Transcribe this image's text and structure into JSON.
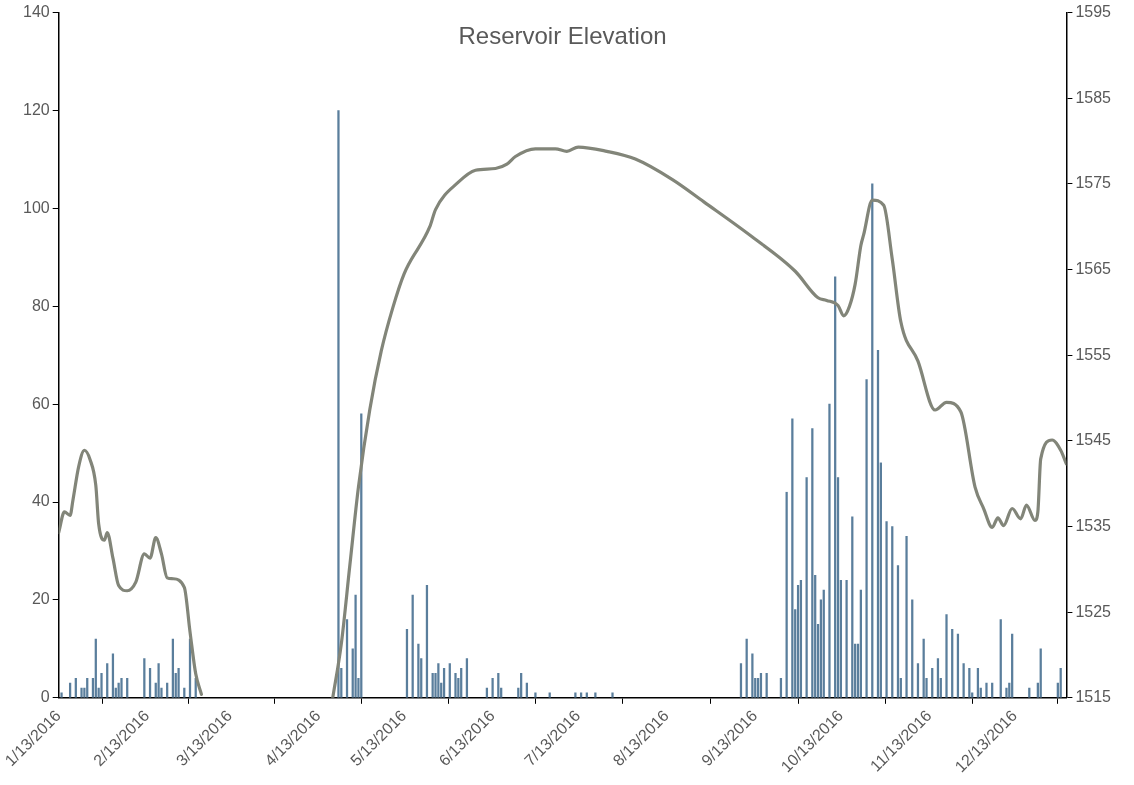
{
  "chart_data": {
    "type": "bar",
    "title": "Reservoir Elevation",
    "xlim": [
      "2016-01-13",
      "2016-12-31"
    ],
    "xticks": [
      {
        "value": "2016-01-13",
        "label": "1/13/2016"
      },
      {
        "value": "2016-02-13",
        "label": "2/13/2016"
      },
      {
        "value": "2016-03-13",
        "label": "3/13/2016"
      },
      {
        "value": "2016-04-13",
        "label": "4/13/2016"
      },
      {
        "value": "2016-05-13",
        "label": "5/13/2016"
      },
      {
        "value": "2016-06-13",
        "label": "6/13/2016"
      },
      {
        "value": "2016-07-13",
        "label": "7/13/2016"
      },
      {
        "value": "2016-08-13",
        "label": "8/13/2016"
      },
      {
        "value": "2016-09-13",
        "label": "9/13/2016"
      },
      {
        "value": "2016-10-13",
        "label": "10/13/2016"
      },
      {
        "value": "2016-11-13",
        "label": "11/13/2016"
      },
      {
        "value": "2016-12-13",
        "label": "12/13/2016"
      }
    ],
    "ylim": [
      0,
      140
    ],
    "yticks": [
      0,
      20,
      40,
      60,
      80,
      100,
      120,
      140
    ],
    "y2lim": [
      1515,
      1595
    ],
    "y2ticks": [
      1515,
      1525,
      1535,
      1545,
      1555,
      1565,
      1575,
      1585,
      1595
    ],
    "grid": false,
    "legend": false,
    "series": [
      {
        "color": "#5a7e9c",
        "x": [
          "2016-01-14",
          "2016-01-17",
          "2016-01-19",
          "2016-01-21",
          "2016-01-22",
          "2016-01-23",
          "2016-01-25",
          "2016-01-26",
          "2016-01-27",
          "2016-01-28",
          "2016-01-30",
          "2016-02-01",
          "2016-02-02",
          "2016-02-03",
          "2016-02-04",
          "2016-02-06",
          "2016-02-12",
          "2016-02-14",
          "2016-02-16",
          "2016-02-17",
          "2016-02-18",
          "2016-02-20",
          "2016-02-22",
          "2016-02-23",
          "2016-02-24",
          "2016-02-26",
          "2016-02-28",
          "2016-03-01",
          "2016-04-20",
          "2016-04-21",
          "2016-04-23",
          "2016-04-25",
          "2016-04-26",
          "2016-04-27",
          "2016-04-28",
          "2016-05-14",
          "2016-05-16",
          "2016-05-18",
          "2016-05-19",
          "2016-05-21",
          "2016-05-23",
          "2016-05-24",
          "2016-05-25",
          "2016-05-26",
          "2016-05-27",
          "2016-05-29",
          "2016-05-31",
          "2016-06-01",
          "2016-06-02",
          "2016-06-04",
          "2016-06-11",
          "2016-06-13",
          "2016-06-15",
          "2016-06-16",
          "2016-06-22",
          "2016-06-23",
          "2016-06-25",
          "2016-06-28",
          "2016-07-03",
          "2016-07-12",
          "2016-07-14",
          "2016-07-16",
          "2016-07-19",
          "2016-07-25",
          "2016-09-08",
          "2016-09-10",
          "2016-09-12",
          "2016-09-13",
          "2016-09-14",
          "2016-09-15",
          "2016-09-17",
          "2016-09-22",
          "2016-09-24",
          "2016-09-26",
          "2016-09-27",
          "2016-09-28",
          "2016-09-29",
          "2016-10-01",
          "2016-10-03",
          "2016-10-04",
          "2016-10-05",
          "2016-10-06",
          "2016-10-07",
          "2016-10-09",
          "2016-10-11",
          "2016-10-12",
          "2016-10-13",
          "2016-10-15",
          "2016-10-17",
          "2016-10-18",
          "2016-10-19",
          "2016-10-20",
          "2016-10-22",
          "2016-10-24",
          "2016-10-26",
          "2016-10-27",
          "2016-10-29",
          "2016-10-31",
          "2016-11-02",
          "2016-11-03",
          "2016-11-05",
          "2016-11-07",
          "2016-11-09",
          "2016-11-11",
          "2016-11-12",
          "2016-11-14",
          "2016-11-16",
          "2016-11-17",
          "2016-11-19",
          "2016-11-21",
          "2016-11-23",
          "2016-11-25",
          "2016-11-27",
          "2016-11-28",
          "2016-11-30",
          "2016-12-01",
          "2016-12-03",
          "2016-12-05",
          "2016-12-08",
          "2016-12-10",
          "2016-12-11",
          "2016-12-12",
          "2016-12-18",
          "2016-12-21",
          "2016-12-22",
          "2016-12-28",
          "2016-12-29"
        ],
        "values": [
          1,
          3,
          4,
          2,
          2,
          4,
          4,
          12,
          2,
          5,
          7,
          9,
          2,
          3,
          4,
          4,
          8,
          6,
          3,
          7,
          2,
          3,
          12,
          5,
          6,
          2,
          12,
          4,
          120,
          6,
          16,
          10,
          21,
          4,
          58,
          14,
          21,
          11,
          8,
          23,
          5,
          5,
          7,
          3,
          6,
          7,
          5,
          4,
          6,
          8,
          2,
          4,
          5,
          2,
          2,
          5,
          3,
          1,
          1,
          1,
          1,
          1,
          1,
          1,
          7,
          12,
          9,
          4,
          4,
          5,
          5,
          4,
          42,
          57,
          18,
          23,
          24,
          45,
          55,
          25,
          15,
          20,
          22,
          60,
          86,
          45,
          24,
          24,
          37,
          11,
          11,
          22,
          65,
          105,
          71,
          48,
          36,
          35,
          27,
          4,
          33,
          20,
          7,
          12,
          4,
          6,
          8,
          4,
          17,
          14,
          13,
          7,
          6,
          1,
          6,
          2,
          3,
          3,
          16,
          2,
          3,
          13,
          2,
          3,
          10,
          3,
          6
        ]
      },
      {
        "type": "line",
        "axis": "y2",
        "color": "#828579",
        "marker": "none",
        "line_style": "solid",
        "x": [
          "2016-01-13",
          "2016-01-15",
          "2016-01-17",
          "2016-01-18",
          "2016-01-20",
          "2016-01-22",
          "2016-01-24",
          "2016-01-26",
          "2016-01-27",
          "2016-01-29",
          "2016-01-30",
          "2016-02-01",
          "2016-02-03",
          "2016-02-06",
          "2016-02-09",
          "2016-02-12",
          "2016-02-14",
          "2016-02-16",
          "2016-02-18",
          "2016-02-20",
          "2016-02-22",
          "2016-02-26",
          "2016-02-28",
          "2016-03-01",
          "2016-03-03",
          "2016-03-20",
          "2016-04-18",
          "2016-04-21",
          "2016-04-24",
          "2016-04-27",
          "2016-05-01",
          "2016-05-05",
          "2016-05-09",
          "2016-05-13",
          "2016-05-22",
          "2016-05-24",
          "2016-06-01",
          "2016-06-07",
          "2016-06-14",
          "2016-06-18",
          "2016-06-21",
          "2016-06-28",
          "2016-07-05",
          "2016-07-09",
          "2016-07-13",
          "2016-07-23",
          "2016-08-02",
          "2016-08-15",
          "2016-08-26",
          "2016-09-12",
          "2016-09-27",
          "2016-10-05",
          "2016-10-08",
          "2016-10-12",
          "2016-10-14",
          "2016-10-16",
          "2016-10-18",
          "2016-10-20",
          "2016-10-21",
          "2016-10-24",
          "2016-10-28",
          "2016-10-31",
          "2016-11-03",
          "2016-11-09",
          "2016-11-15",
          "2016-11-19",
          "2016-11-24",
          "2016-11-29",
          "2016-12-02",
          "2016-12-05",
          "2016-12-07",
          "2016-12-09",
          "2016-12-12",
          "2016-12-15",
          "2016-12-17",
          "2016-12-20",
          "2016-12-21",
          "2016-12-22",
          "2016-12-26",
          "2016-12-29",
          "2016-12-31"
        ],
        "values": [
          1534.3,
          1536.7,
          1536.3,
          1538.1,
          1542.0,
          1543.9,
          1542.8,
          1539.8,
          1535.3,
          1533.4,
          1534.3,
          1531.3,
          1528.1,
          1527.5,
          1528.5,
          1531.8,
          1531.3,
          1533.7,
          1531.8,
          1529.0,
          1528.9,
          1527.9,
          1522.7,
          1517.8,
          1515.4,
          null,
          1515,
          1521.3,
          1530.5,
          1539.6,
          1548.7,
          1555.5,
          1560.5,
          1564.5,
          1570.0,
          1572.0,
          1575.2,
          1576.6,
          1576.8,
          1577.3,
          1578.2,
          1579.1,
          1579.1,
          1578.8,
          1579.3,
          1578.8,
          1577.9,
          1575.5,
          1572.9,
          1568.8,
          1564.8,
          1561.7,
          1561.4,
          1560.8,
          1559.6,
          1560.7,
          1563.3,
          1567.8,
          1569.1,
          1573.1,
          1572.5,
          1566.2,
          1558.9,
          1554.3,
          1548.6,
          1549.5,
          1548.4,
          1539.6,
          1537.1,
          1534.9,
          1536.0,
          1535.1,
          1537.1,
          1535.9,
          1537.5,
          1535.7,
          1536.7,
          1542.9,
          1545.1,
          1543.9,
          1542.3
        ]
      }
    ]
  }
}
